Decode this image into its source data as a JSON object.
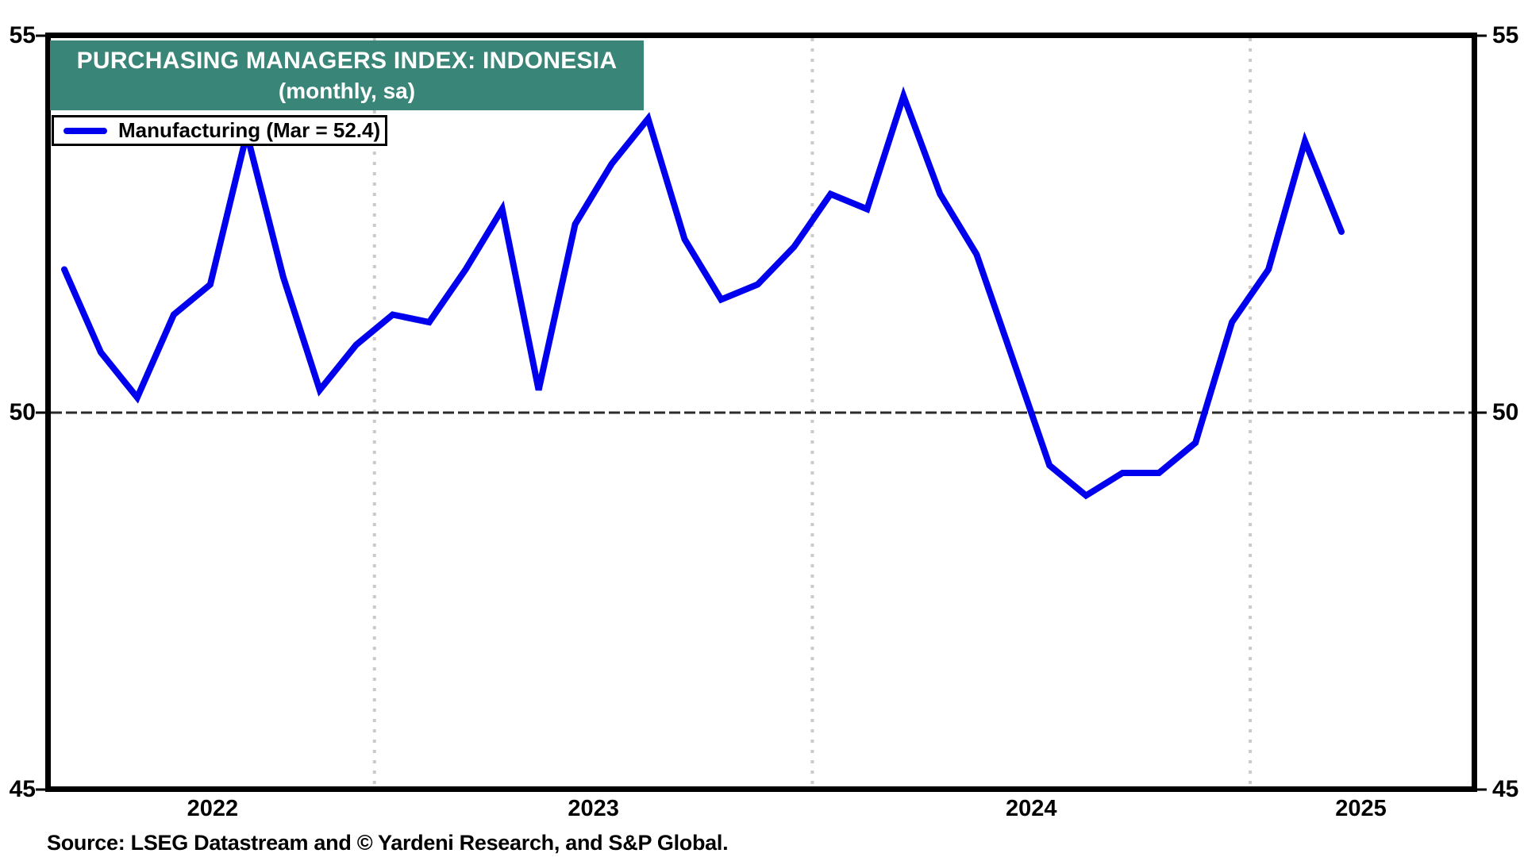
{
  "title": {
    "line1": "PURCHASING MANAGERS INDEX: INDONESIA",
    "line2": "(monthly, sa)"
  },
  "legend": {
    "label": "Manufacturing (Mar = 52.4)"
  },
  "source": "Source: LSEG Datastream and © Yardeni Research, and S&P Global.",
  "colors": {
    "line": "#0000EE",
    "title_bg": "#398578",
    "title_text": "#FFFFFF",
    "grid": "#CACACA",
    "reference_line": "#2B2B2B",
    "axis": "#000000"
  },
  "axes": {
    "y_ticks": [
      "55",
      "50",
      "45"
    ],
    "x_labels": [
      "2022",
      "2023",
      "2024",
      "2025"
    ]
  },
  "chart_data": {
    "type": "line",
    "title": "PURCHASING MANAGERS INDEX: INDONESIA (monthly, sa)",
    "series": [
      {
        "name": "Manufacturing",
        "x": [
          "2022-04",
          "2022-05",
          "2022-06",
          "2022-07",
          "2022-08",
          "2022-09",
          "2022-10",
          "2022-11",
          "2022-12",
          "2023-01",
          "2023-02",
          "2023-03",
          "2023-04",
          "2023-05",
          "2023-06",
          "2023-07",
          "2023-08",
          "2023-09",
          "2023-10",
          "2023-11",
          "2023-12",
          "2024-01",
          "2024-02",
          "2024-03",
          "2024-04",
          "2024-05",
          "2024-06",
          "2024-07",
          "2024-08",
          "2024-09",
          "2024-10",
          "2024-11",
          "2024-12",
          "2025-01",
          "2025-02",
          "2025-03"
        ],
        "values": [
          51.9,
          50.8,
          50.2,
          51.3,
          51.7,
          53.7,
          51.8,
          50.3,
          50.9,
          51.3,
          51.2,
          51.9,
          52.7,
          50.3,
          52.5,
          53.3,
          53.9,
          52.3,
          51.5,
          51.7,
          52.2,
          52.9,
          52.7,
          54.2,
          52.9,
          52.1,
          50.7,
          49.3,
          48.9,
          49.2,
          49.2,
          49.6,
          51.2,
          51.9,
          53.6,
          52.4
        ]
      }
    ],
    "ylim": [
      45,
      55
    ],
    "yticks": [
      55,
      50,
      45
    ],
    "reference_line": 50,
    "grid": "dotted vertical gridlines at each year start",
    "legend_position": "top-left",
    "last_point_label": "Mar = 52.4"
  }
}
